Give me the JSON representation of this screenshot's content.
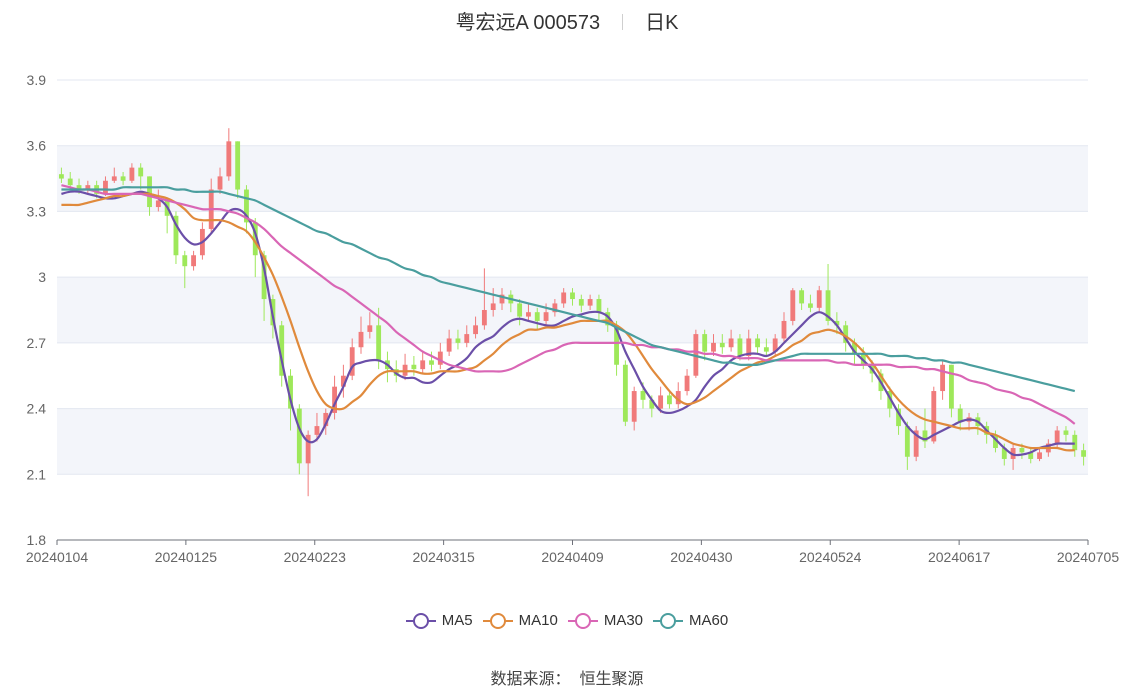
{
  "header": {
    "title": "粤宏远A 000573",
    "period": "日K"
  },
  "source": {
    "label": "数据来源：",
    "value": "恒生聚源"
  },
  "legend": [
    {
      "name": "MA5",
      "color": "#6b4fa8"
    },
    {
      "name": "MA10",
      "color": "#e08a3c"
    },
    {
      "name": "MA30",
      "color": "#d966b5"
    },
    {
      "name": "MA60",
      "color": "#4a9e9e"
    }
  ],
  "chart_data": {
    "type": "candlestick",
    "title": "粤宏远A 000573",
    "subtitle": "日K",
    "ylim": [
      1.8,
      3.9
    ],
    "yticks": [
      1.8,
      2.1,
      2.4,
      2.7,
      3,
      3.3,
      3.6,
      3.9
    ],
    "ytick_labels": [
      "1.8",
      "2.1",
      "2.4",
      "2.7",
      "3",
      "3.3",
      "3.6",
      "3.9"
    ],
    "xticks": [
      "20240104",
      "20240125",
      "20240223",
      "20240315",
      "20240409",
      "20240430",
      "20240524",
      "20240617",
      "20240705"
    ],
    "grid": true,
    "up_color": "#f07a7a",
    "down_color": "#9ee85a",
    "legend_position": "bottom",
    "candles": [
      [
        3.47,
        3.45,
        3.5,
        3.43
      ],
      [
        3.45,
        3.42,
        3.48,
        3.4
      ],
      [
        3.42,
        3.4,
        3.45,
        3.38
      ],
      [
        3.4,
        3.42,
        3.44,
        3.38
      ],
      [
        3.42,
        3.38,
        3.44,
        3.36
      ],
      [
        3.38,
        3.44,
        3.46,
        3.37
      ],
      [
        3.44,
        3.46,
        3.5,
        3.43
      ],
      [
        3.46,
        3.44,
        3.48,
        3.42
      ],
      [
        3.44,
        3.5,
        3.52,
        3.43
      ],
      [
        3.5,
        3.46,
        3.52,
        3.4
      ],
      [
        3.46,
        3.32,
        3.46,
        3.28
      ],
      [
        3.32,
        3.35,
        3.4,
        3.3
      ],
      [
        3.35,
        3.28,
        3.36,
        3.2
      ],
      [
        3.28,
        3.1,
        3.3,
        3.06
      ],
      [
        3.1,
        3.05,
        3.12,
        2.95
      ],
      [
        3.05,
        3.1,
        3.12,
        3.03
      ],
      [
        3.1,
        3.22,
        3.25,
        3.08
      ],
      [
        3.22,
        3.4,
        3.45,
        3.2
      ],
      [
        3.4,
        3.46,
        3.5,
        3.38
      ],
      [
        3.46,
        3.62,
        3.68,
        3.44
      ],
      [
        3.62,
        3.4,
        3.62,
        3.36
      ],
      [
        3.4,
        3.25,
        3.42,
        3.2
      ],
      [
        3.25,
        3.1,
        3.27,
        3.0
      ],
      [
        3.1,
        2.9,
        3.12,
        2.8
      ],
      [
        2.9,
        2.78,
        2.92,
        2.72
      ],
      [
        2.78,
        2.55,
        2.8,
        2.5
      ],
      [
        2.55,
        2.4,
        2.58,
        2.3
      ],
      [
        2.4,
        2.15,
        2.42,
        2.1
      ],
      [
        2.15,
        2.28,
        2.3,
        2.0
      ],
      [
        2.28,
        2.32,
        2.38,
        2.25
      ],
      [
        2.32,
        2.38,
        2.4,
        2.28
      ],
      [
        2.38,
        2.5,
        2.55,
        2.35
      ],
      [
        2.5,
        2.55,
        2.6,
        2.45
      ],
      [
        2.55,
        2.68,
        2.72,
        2.53
      ],
      [
        2.68,
        2.75,
        2.82,
        2.65
      ],
      [
        2.75,
        2.78,
        2.84,
        2.72
      ],
      [
        2.78,
        2.62,
        2.86,
        2.58
      ],
      [
        2.62,
        2.58,
        2.66,
        2.52
      ],
      [
        2.58,
        2.55,
        2.62,
        2.52
      ],
      [
        2.55,
        2.6,
        2.65,
        2.53
      ],
      [
        2.6,
        2.58,
        2.64,
        2.55
      ],
      [
        2.58,
        2.62,
        2.66,
        2.56
      ],
      [
        2.62,
        2.6,
        2.66,
        2.57
      ],
      [
        2.6,
        2.66,
        2.7,
        2.58
      ],
      [
        2.66,
        2.72,
        2.76,
        2.64
      ],
      [
        2.72,
        2.7,
        2.76,
        2.67
      ],
      [
        2.7,
        2.74,
        2.78,
        2.68
      ],
      [
        2.74,
        2.78,
        2.82,
        2.72
      ],
      [
        2.78,
        2.85,
        3.04,
        2.76
      ],
      [
        2.85,
        2.88,
        2.95,
        2.82
      ],
      [
        2.88,
        2.92,
        2.95,
        2.85
      ],
      [
        2.92,
        2.88,
        2.94,
        2.84
      ],
      [
        2.88,
        2.82,
        2.9,
        2.78
      ],
      [
        2.82,
        2.84,
        2.88,
        2.8
      ],
      [
        2.84,
        2.8,
        2.86,
        2.76
      ],
      [
        2.8,
        2.84,
        2.88,
        2.78
      ],
      [
        2.84,
        2.88,
        2.9,
        2.82
      ],
      [
        2.88,
        2.93,
        2.95,
        2.86
      ],
      [
        2.93,
        2.9,
        2.95,
        2.87
      ],
      [
        2.9,
        2.87,
        2.92,
        2.84
      ],
      [
        2.87,
        2.9,
        2.92,
        2.85
      ],
      [
        2.9,
        2.84,
        2.92,
        2.8
      ],
      [
        2.84,
        2.78,
        2.86,
        2.75
      ],
      [
        2.78,
        2.6,
        2.8,
        2.55
      ],
      [
        2.6,
        2.34,
        2.62,
        2.32
      ],
      [
        2.34,
        2.48,
        2.5,
        2.3
      ],
      [
        2.48,
        2.44,
        2.52,
        2.4
      ],
      [
        2.44,
        2.4,
        2.46,
        2.36
      ],
      [
        2.4,
        2.46,
        2.5,
        2.38
      ],
      [
        2.46,
        2.42,
        2.48,
        2.4
      ],
      [
        2.42,
        2.48,
        2.52,
        2.4
      ],
      [
        2.48,
        2.55,
        2.58,
        2.46
      ],
      [
        2.55,
        2.74,
        2.76,
        2.54
      ],
      [
        2.74,
        2.66,
        2.76,
        2.62
      ],
      [
        2.66,
        2.7,
        2.74,
        2.64
      ],
      [
        2.7,
        2.68,
        2.74,
        2.65
      ],
      [
        2.68,
        2.72,
        2.76,
        2.66
      ],
      [
        2.72,
        2.64,
        2.74,
        2.62
      ],
      [
        2.64,
        2.72,
        2.76,
        2.62
      ],
      [
        2.72,
        2.68,
        2.74,
        2.65
      ],
      [
        2.68,
        2.66,
        2.72,
        2.64
      ],
      [
        2.66,
        2.72,
        2.74,
        2.64
      ],
      [
        2.72,
        2.8,
        2.84,
        2.7
      ],
      [
        2.8,
        2.94,
        2.95,
        2.78
      ],
      [
        2.94,
        2.88,
        2.95,
        2.85
      ],
      [
        2.88,
        2.86,
        2.92,
        2.84
      ],
      [
        2.86,
        2.94,
        2.96,
        2.84
      ],
      [
        2.94,
        2.8,
        3.06,
        2.78
      ],
      [
        2.8,
        2.78,
        2.84,
        2.74
      ],
      [
        2.78,
        2.7,
        2.8,
        2.66
      ],
      [
        2.7,
        2.65,
        2.72,
        2.6
      ],
      [
        2.65,
        2.6,
        2.68,
        2.58
      ],
      [
        2.6,
        2.56,
        2.62,
        2.52
      ],
      [
        2.56,
        2.48,
        2.58,
        2.44
      ],
      [
        2.48,
        2.4,
        2.5,
        2.36
      ],
      [
        2.4,
        2.32,
        2.42,
        2.28
      ],
      [
        2.32,
        2.18,
        2.34,
        2.12
      ],
      [
        2.18,
        2.3,
        2.32,
        2.16
      ],
      [
        2.3,
        2.25,
        2.4,
        2.22
      ],
      [
        2.25,
        2.48,
        2.5,
        2.24
      ],
      [
        2.48,
        2.6,
        2.62,
        2.44
      ],
      [
        2.6,
        2.4,
        2.6,
        2.36
      ],
      [
        2.4,
        2.34,
        2.42,
        2.3
      ],
      [
        2.34,
        2.36,
        2.38,
        2.3
      ],
      [
        2.36,
        2.32,
        2.38,
        2.28
      ],
      [
        2.32,
        2.28,
        2.34,
        2.24
      ],
      [
        2.28,
        2.22,
        2.3,
        2.2
      ],
      [
        2.22,
        2.17,
        2.24,
        2.14
      ],
      [
        2.17,
        2.22,
        2.24,
        2.12
      ],
      [
        2.22,
        2.2,
        2.24,
        2.17
      ],
      [
        2.2,
        2.17,
        2.22,
        2.15
      ],
      [
        2.17,
        2.2,
        2.22,
        2.16
      ],
      [
        2.2,
        2.24,
        2.26,
        2.18
      ],
      [
        2.24,
        2.3,
        2.32,
        2.22
      ],
      [
        2.3,
        2.28,
        2.32,
        2.25
      ],
      [
        2.28,
        2.21,
        2.3,
        2.18
      ],
      [
        2.21,
        2.18,
        2.24,
        2.14
      ]
    ],
    "series": [
      {
        "name": "MA5",
        "color": "#6b4fa8",
        "values": [
          3.38,
          3.39,
          3.39,
          3.38,
          3.37,
          3.36,
          3.36,
          3.37,
          3.38,
          3.39,
          3.38,
          3.36,
          3.32,
          3.24,
          3.18,
          3.15,
          3.16,
          3.2,
          3.25,
          3.3,
          3.31,
          3.28,
          3.2,
          3.04,
          2.82,
          2.62,
          2.44,
          2.31,
          2.25,
          2.26,
          2.33,
          2.42,
          2.5,
          2.59,
          2.61,
          2.62,
          2.62,
          2.6,
          2.56,
          2.54,
          2.54,
          2.52,
          2.52,
          2.55,
          2.58,
          2.6,
          2.63,
          2.68,
          2.71,
          2.73,
          2.77,
          2.8,
          2.81,
          2.8,
          2.79,
          2.78,
          2.78,
          2.8,
          2.82,
          2.83,
          2.84,
          2.84,
          2.82,
          2.76,
          2.66,
          2.58,
          2.5,
          2.44,
          2.39,
          2.38,
          2.39,
          2.41,
          2.44,
          2.5,
          2.55,
          2.58,
          2.62,
          2.64,
          2.65,
          2.65,
          2.64,
          2.66,
          2.7,
          2.74,
          2.78,
          2.82,
          2.84,
          2.82,
          2.78,
          2.72,
          2.66,
          2.62,
          2.58,
          2.52,
          2.45,
          2.38,
          2.32,
          2.28,
          2.26,
          2.28,
          2.3,
          2.32,
          2.34,
          2.35,
          2.34,
          2.3,
          2.26,
          2.22,
          2.19,
          2.19,
          2.2,
          2.22,
          2.23,
          2.24,
          2.24,
          2.24
        ]
      },
      {
        "name": "MA10",
        "color": "#e08a3c",
        "values": [
          3.33,
          3.33,
          3.33,
          3.34,
          3.35,
          3.36,
          3.37,
          3.37,
          3.38,
          3.38,
          3.38,
          3.37,
          3.36,
          3.34,
          3.31,
          3.27,
          3.26,
          3.26,
          3.26,
          3.25,
          3.23,
          3.21,
          3.16,
          3.09,
          3.01,
          2.91,
          2.8,
          2.68,
          2.57,
          2.48,
          2.42,
          2.4,
          2.4,
          2.43,
          2.46,
          2.51,
          2.55,
          2.57,
          2.57,
          2.57,
          2.57,
          2.56,
          2.56,
          2.57,
          2.57,
          2.57,
          2.58,
          2.59,
          2.62,
          2.65,
          2.69,
          2.72,
          2.74,
          2.76,
          2.76,
          2.77,
          2.77,
          2.78,
          2.79,
          2.8,
          2.8,
          2.8,
          2.8,
          2.78,
          2.75,
          2.7,
          2.64,
          2.58,
          2.53,
          2.48,
          2.44,
          2.42,
          2.43,
          2.45,
          2.48,
          2.51,
          2.54,
          2.57,
          2.59,
          2.61,
          2.62,
          2.64,
          2.66,
          2.69,
          2.71,
          2.74,
          2.75,
          2.76,
          2.75,
          2.73,
          2.7,
          2.66,
          2.61,
          2.55,
          2.49,
          2.44,
          2.4,
          2.37,
          2.35,
          2.34,
          2.33,
          2.32,
          2.31,
          2.31,
          2.31,
          2.29,
          2.28,
          2.26,
          2.24,
          2.23,
          2.22,
          2.22,
          2.22,
          2.22,
          2.21,
          2.21
        ]
      },
      {
        "name": "MA30",
        "color": "#d966b5",
        "values": [
          3.42,
          3.41,
          3.4,
          3.4,
          3.39,
          3.38,
          3.38,
          3.38,
          3.38,
          3.38,
          3.37,
          3.36,
          3.35,
          3.34,
          3.33,
          3.32,
          3.31,
          3.31,
          3.31,
          3.3,
          3.29,
          3.27,
          3.25,
          3.22,
          3.18,
          3.14,
          3.11,
          3.08,
          3.05,
          3.02,
          2.99,
          2.96,
          2.94,
          2.91,
          2.88,
          2.85,
          2.82,
          2.79,
          2.75,
          2.72,
          2.69,
          2.66,
          2.64,
          2.62,
          2.6,
          2.59,
          2.58,
          2.57,
          2.57,
          2.57,
          2.57,
          2.58,
          2.6,
          2.62,
          2.64,
          2.66,
          2.67,
          2.69,
          2.7,
          2.7,
          2.7,
          2.7,
          2.7,
          2.7,
          2.7,
          2.69,
          2.69,
          2.68,
          2.68,
          2.67,
          2.67,
          2.66,
          2.66,
          2.65,
          2.65,
          2.64,
          2.64,
          2.63,
          2.63,
          2.63,
          2.62,
          2.62,
          2.62,
          2.62,
          2.62,
          2.62,
          2.62,
          2.62,
          2.61,
          2.61,
          2.6,
          2.6,
          2.6,
          2.6,
          2.6,
          2.59,
          2.59,
          2.59,
          2.58,
          2.58,
          2.57,
          2.56,
          2.55,
          2.53,
          2.52,
          2.51,
          2.49,
          2.48,
          2.47,
          2.45,
          2.44,
          2.42,
          2.4,
          2.38,
          2.36,
          2.33
        ]
      },
      {
        "name": "MA60",
        "color": "#4a9e9e",
        "values": [
          3.4,
          3.4,
          3.4,
          3.4,
          3.4,
          3.4,
          3.4,
          3.41,
          3.41,
          3.41,
          3.41,
          3.41,
          3.41,
          3.4,
          3.4,
          3.39,
          3.39,
          3.39,
          3.39,
          3.38,
          3.37,
          3.36,
          3.35,
          3.33,
          3.31,
          3.29,
          3.27,
          3.25,
          3.23,
          3.21,
          3.2,
          3.18,
          3.16,
          3.15,
          3.13,
          3.11,
          3.09,
          3.08,
          3.06,
          3.04,
          3.03,
          3.01,
          3.0,
          2.98,
          2.97,
          2.96,
          2.95,
          2.94,
          2.93,
          2.92,
          2.91,
          2.9,
          2.89,
          2.88,
          2.87,
          2.86,
          2.85,
          2.84,
          2.83,
          2.82,
          2.81,
          2.8,
          2.79,
          2.77,
          2.75,
          2.73,
          2.71,
          2.69,
          2.68,
          2.67,
          2.66,
          2.65,
          2.64,
          2.63,
          2.62,
          2.61,
          2.61,
          2.6,
          2.6,
          2.6,
          2.61,
          2.62,
          2.63,
          2.64,
          2.65,
          2.65,
          2.65,
          2.65,
          2.65,
          2.65,
          2.65,
          2.65,
          2.65,
          2.65,
          2.64,
          2.64,
          2.64,
          2.63,
          2.63,
          2.62,
          2.62,
          2.61,
          2.61,
          2.6,
          2.59,
          2.58,
          2.57,
          2.56,
          2.55,
          2.54,
          2.53,
          2.52,
          2.51,
          2.5,
          2.49,
          2.48
        ]
      }
    ]
  }
}
